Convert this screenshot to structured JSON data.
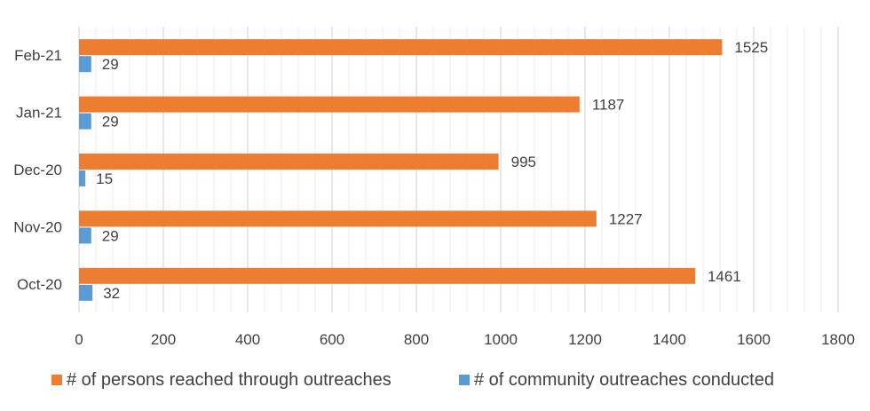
{
  "chart_data": {
    "type": "bar",
    "orientation": "horizontal",
    "categories": [
      "Oct-20",
      "Nov-20",
      "Dec-20",
      "Jan-21",
      "Feb-21"
    ],
    "series": [
      {
        "name": "# of persons reached through outreaches",
        "color": "#ED7D31",
        "values": [
          1461,
          1227,
          995,
          1187,
          1525
        ]
      },
      {
        "name": "# of community outreaches conducted",
        "color": "#5B9BD5",
        "values": [
          32,
          29,
          15,
          29,
          29
        ]
      }
    ],
    "xlim": [
      0,
      1800
    ],
    "xticks": [
      "0",
      "200",
      "400",
      "600",
      "800",
      "1000",
      "1200",
      "1400",
      "1600",
      "1800"
    ],
    "grid": true,
    "data_labels": true,
    "legend": "bottom"
  }
}
